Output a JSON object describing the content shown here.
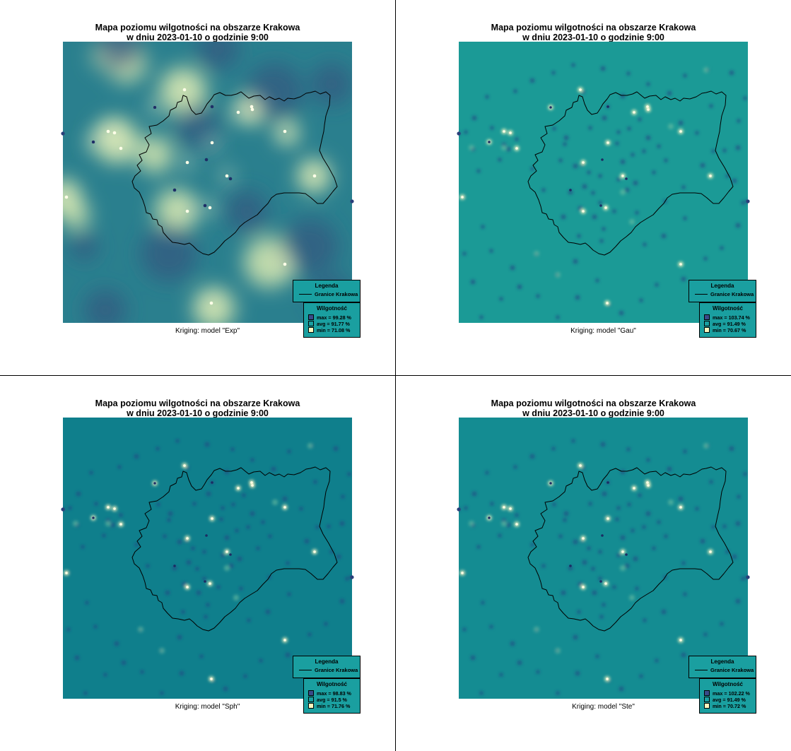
{
  "panels": [
    {
      "title1": "Mapa poziomu wilgotności na obszarze Krakowa",
      "title2": "w dniu 2023-01-10 o godzinie 9:00",
      "caption": "Kriging: model \"Exp\"",
      "legend_title": "Legenda",
      "legend_line": "Granice Krakowa",
      "wilg_title": "Wilgotność",
      "max": "max =  99.28 %",
      "avg": "avg =  91.77 %",
      "min": "min =  71.08 %"
    },
    {
      "title1": "Mapa poziomu wilgotności na obszarze Krakowa",
      "title2": "w dniu 2023-01-10 o godzinie 9:00",
      "caption": "Kriging: model \"Gau\"",
      "legend_title": "Legenda",
      "legend_line": "Granice Krakowa",
      "wilg_title": "Wilgotność",
      "max": "max =  103.74 %",
      "avg": "avg =  91.49 %",
      "min": "min =  70.67 %"
    },
    {
      "title1": "Mapa poziomu wilgotności na obszarze Krakowa",
      "title2": "w dniu 2023-01-10 o godzinie 9:00",
      "caption": "Kriging: model \"Sph\"",
      "legend_title": "Legenda",
      "legend_line": "Granice Krakowa",
      "wilg_title": "Wilgotność",
      "max": "max =  98.83 %",
      "avg": "avg =  91.5 %",
      "min": "min =  71.76 %"
    },
    {
      "title1": "Mapa poziomu wilgotności na obszarze Krakowa",
      "title2": "w dniu 2023-01-10 o godzinie 9:00",
      "caption": "Kriging: model \"Ste\"",
      "legend_title": "Legenda",
      "legend_line": "Granice Krakowa",
      "wilg_title": "Wilgotność",
      "max": "max =  102.22 %",
      "avg": "avg =  91.49 %",
      "min": "min =  70.72 %"
    }
  ],
  "colors": {
    "exp_background": "#2a7f8e",
    "gau_background": "#1b9a96",
    "sph_background": "#0f7f8c",
    "ste_background": "#148c92",
    "high_humidity": "#2a3f7a",
    "low_humidity": "#fbf7bf",
    "legend_fill": "#1a9fa0",
    "max_swatch": "#3a4a8a",
    "avg_swatch": "#1a9fa0",
    "min_swatch": "#fbf7bf"
  }
}
